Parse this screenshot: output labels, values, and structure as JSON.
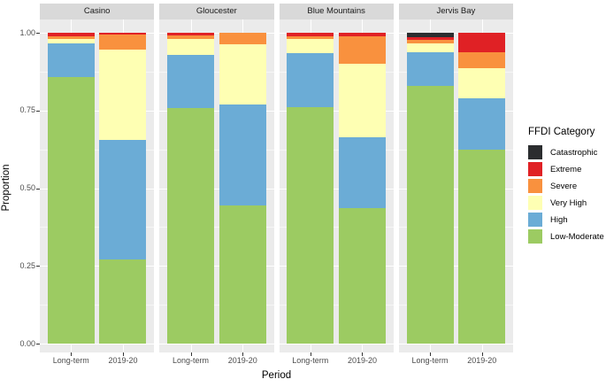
{
  "figure": {
    "kind": "faceted stacked proportion bar chart"
  },
  "chart_data": {
    "type": "bar",
    "variant": "stacked-proportion",
    "title": "",
    "xlabel": "Period",
    "ylabel": "Proportion",
    "ylim": [
      0,
      1
    ],
    "grid": true,
    "yticks": [
      {
        "v": 1.0,
        "label": "1.00"
      },
      {
        "v": 0.75,
        "label": "0.75"
      },
      {
        "v": 0.5,
        "label": "0.50"
      },
      {
        "v": 0.25,
        "label": "0.25"
      },
      {
        "v": 0.0,
        "label": "0.00"
      }
    ],
    "yticks_minor": [
      0.875,
      0.625,
      0.375,
      0.125
    ],
    "categories": [
      "Long-term",
      "2019-20"
    ],
    "stack_order_bottom_to_top": [
      "Low-Moderate",
      "High",
      "Very High",
      "Severe",
      "Extreme",
      "Catastrophic"
    ],
    "colors": {
      "Catastrophic": "#2b2d2f",
      "Extreme": "#e02125",
      "Severe": "#f9913e",
      "Very High": "#feffb3",
      "High": "#6bacd6",
      "Low-Moderate": "#9ccb62"
    },
    "legend": {
      "title": "FFDI Category",
      "position": "right",
      "entries": [
        {
          "label": "Catastrophic",
          "color": "#2b2d2f"
        },
        {
          "label": "Extreme",
          "color": "#e02125"
        },
        {
          "label": "Severe",
          "color": "#f9913e"
        },
        {
          "label": "Very High",
          "color": "#feffb3"
        },
        {
          "label": "High",
          "color": "#6bacd6"
        },
        {
          "label": "Low-Moderate",
          "color": "#9ccb62"
        }
      ]
    },
    "facets": [
      {
        "name": "Casino",
        "bars": [
          {
            "category": "Long-term",
            "segments": {
              "Low-Moderate": 0.858,
              "High": 0.107,
              "Very High": 0.014,
              "Severe": 0.01,
              "Extreme": 0.011,
              "Catastrophic": 0
            }
          },
          {
            "category": "2019-20",
            "segments": {
              "Low-Moderate": 0.27,
              "High": 0.385,
              "Very High": 0.29,
              "Severe": 0.048,
              "Extreme": 0.007,
              "Catastrophic": 0
            }
          }
        ]
      },
      {
        "name": "Gloucester",
        "bars": [
          {
            "category": "Long-term",
            "segments": {
              "Low-Moderate": 0.758,
              "High": 0.171,
              "Very High": 0.051,
              "Severe": 0.011,
              "Extreme": 0.009,
              "Catastrophic": 0
            }
          },
          {
            "category": "2019-20",
            "segments": {
              "Low-Moderate": 0.445,
              "High": 0.325,
              "Very High": 0.194,
              "Severe": 0.036,
              "Extreme": 0,
              "Catastrophic": 0
            }
          }
        ]
      },
      {
        "name": "Blue Mountains",
        "bars": [
          {
            "category": "Long-term",
            "segments": {
              "Low-Moderate": 0.762,
              "High": 0.172,
              "Very High": 0.045,
              "Severe": 0.009,
              "Extreme": 0.012,
              "Catastrophic": 0
            }
          },
          {
            "category": "2019-20",
            "segments": {
              "Low-Moderate": 0.435,
              "High": 0.23,
              "Very High": 0.235,
              "Severe": 0.088,
              "Extreme": 0.012,
              "Catastrophic": 0
            }
          }
        ]
      },
      {
        "name": "Jervis Bay",
        "bars": [
          {
            "category": "Long-term",
            "segments": {
              "Low-Moderate": 0.83,
              "High": 0.106,
              "Very High": 0.031,
              "Severe": 0.009,
              "Extreme": 0.011,
              "Catastrophic": 0.013
            }
          },
          {
            "category": "2019-20",
            "segments": {
              "Low-Moderate": 0.625,
              "High": 0.164,
              "Very High": 0.097,
              "Severe": 0.05,
              "Extreme": 0.064,
              "Catastrophic": 0
            }
          }
        ]
      }
    ]
  }
}
